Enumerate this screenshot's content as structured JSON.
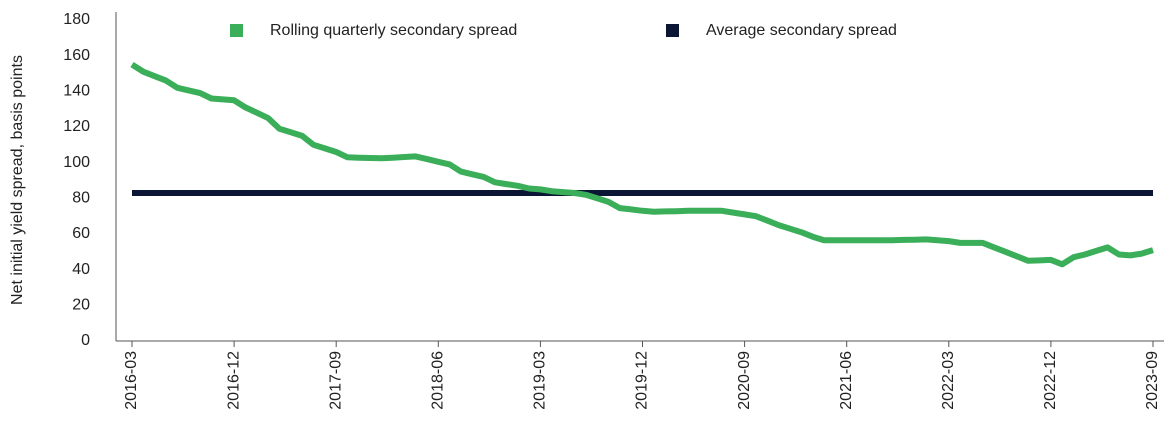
{
  "chart_data": {
    "type": "line",
    "y_label": "Net initial yield spread, basis points",
    "categories": [
      "2016-03",
      null,
      null,
      null,
      null,
      null,
      null,
      null,
      null,
      "2016-12",
      null,
      null,
      null,
      null,
      null,
      null,
      null,
      null,
      "2017-09",
      null,
      null,
      null,
      null,
      null,
      null,
      null,
      null,
      "2018-06",
      null,
      null,
      null,
      null,
      null,
      null,
      null,
      null,
      "2019-03",
      null,
      null,
      null,
      null,
      null,
      null,
      null,
      null,
      "2019-12",
      null,
      null,
      null,
      null,
      null,
      null,
      null,
      null,
      "2020-09",
      null,
      null,
      null,
      null,
      null,
      null,
      null,
      null,
      "2021-06",
      null,
      null,
      null,
      null,
      null,
      null,
      null,
      null,
      "2022-03",
      null,
      null,
      null,
      null,
      null,
      null,
      null,
      null,
      "2022-12",
      null,
      null,
      null,
      null,
      null,
      null,
      null,
      null,
      "2023-09"
    ],
    "series": [
      {
        "name": "Rolling quarterly secondary spread",
        "color": "#3aae58",
        "values": [
          155,
          151,
          148.5,
          146,
          142,
          140.5,
          139,
          136,
          135.5,
          135,
          131,
          128,
          125,
          119,
          117,
          115,
          110,
          108,
          106,
          103,
          102.8,
          102.6,
          102.5,
          102.8,
          103.2,
          103.5,
          102,
          100.5,
          99,
          95,
          93.5,
          92,
          89,
          88,
          87,
          85.5,
          85,
          84,
          83.5,
          83,
          82,
          80,
          78,
          74.5,
          73.8,
          73,
          72.5,
          72.7,
          72.8,
          73,
          73,
          73,
          73,
          72,
          71,
          70,
          67.5,
          65,
          63,
          61,
          58.5,
          56.5,
          56.5,
          56.5,
          56.5,
          56.5,
          56.5,
          56.5,
          56.7,
          56.8,
          57,
          56.5,
          56,
          55,
          55,
          55,
          52.5,
          50,
          47.5,
          45,
          45.2,
          45.5,
          43,
          47,
          48.5,
          50.5,
          52.5,
          48.5,
          48,
          49,
          51
        ]
      },
      {
        "name": "Average secondary spread",
        "color": "#0b1534",
        "values": [
          83,
          83,
          83,
          83,
          83,
          83,
          83,
          83,
          83,
          83,
          83,
          83,
          83,
          83,
          83,
          83,
          83,
          83,
          83,
          83,
          83,
          83,
          83,
          83,
          83,
          83,
          83,
          83,
          83,
          83,
          83,
          83,
          83,
          83,
          83,
          83,
          83,
          83,
          83,
          83,
          83,
          83,
          83,
          83,
          83,
          83,
          83,
          83,
          83,
          83,
          83,
          83,
          83,
          83,
          83,
          83,
          83,
          83,
          83,
          83,
          83,
          83,
          83,
          83,
          83,
          83,
          83,
          83,
          83,
          83,
          83,
          83,
          83,
          83,
          83,
          83,
          83,
          83,
          83,
          83,
          83,
          83,
          83,
          83,
          83,
          83,
          83,
          83,
          83,
          83,
          83
        ]
      }
    ],
    "ylim": [
      0,
      180
    ],
    "yticks": [
      0,
      20,
      40,
      60,
      80,
      100,
      120,
      140,
      160,
      180
    ],
    "grid": false,
    "legend": "top"
  }
}
